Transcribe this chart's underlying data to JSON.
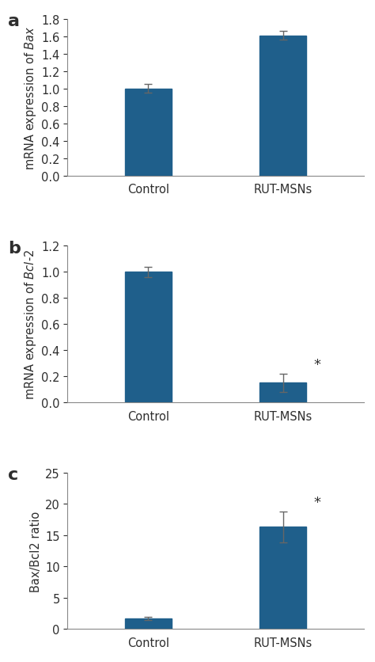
{
  "panel_a": {
    "label": "a",
    "categories": [
      "Control",
      "RUT-MSNs"
    ],
    "values": [
      1.0,
      1.61
    ],
    "errors": [
      0.05,
      0.05
    ],
    "ylabel": "mRNA expression of $Bax$",
    "ylim": [
      0,
      1.8
    ],
    "yticks": [
      0,
      0.2,
      0.4,
      0.6,
      0.8,
      1.0,
      1.2,
      1.4,
      1.6,
      1.8
    ],
    "star": [
      false,
      false
    ],
    "bar_color": "#1F5F8B"
  },
  "panel_b": {
    "label": "b",
    "categories": [
      "Control",
      "RUT-MSNs"
    ],
    "values": [
      1.0,
      0.15
    ],
    "errors": [
      0.04,
      0.07
    ],
    "ylabel": "mRNA expression of $Bcl$-$2$",
    "ylim": [
      0,
      1.2
    ],
    "yticks": [
      0,
      0.2,
      0.4,
      0.6,
      0.8,
      1.0,
      1.2
    ],
    "star": [
      false,
      true
    ],
    "bar_color": "#1F5F8B"
  },
  "panel_c": {
    "label": "c",
    "categories": [
      "Control",
      "RUT-MSNs"
    ],
    "values": [
      1.7,
      16.3
    ],
    "errors": [
      0.25,
      2.5
    ],
    "ylabel": "Bax/Bcl2 ratio",
    "ylim": [
      0,
      25
    ],
    "yticks": [
      0,
      5,
      10,
      15,
      20,
      25
    ],
    "star": [
      false,
      true
    ],
    "bar_color": "#1F5F8B"
  },
  "bar_width": 0.35,
  "x_positions": [
    1,
    2
  ],
  "xlim": [
    0.4,
    2.6
  ],
  "background_color": "#ffffff",
  "text_color": "#2e2e2e",
  "error_color": "#666666",
  "star_fontsize": 13,
  "label_fontsize": 16,
  "tick_fontsize": 10.5,
  "ylabel_fontsize": 10.5
}
